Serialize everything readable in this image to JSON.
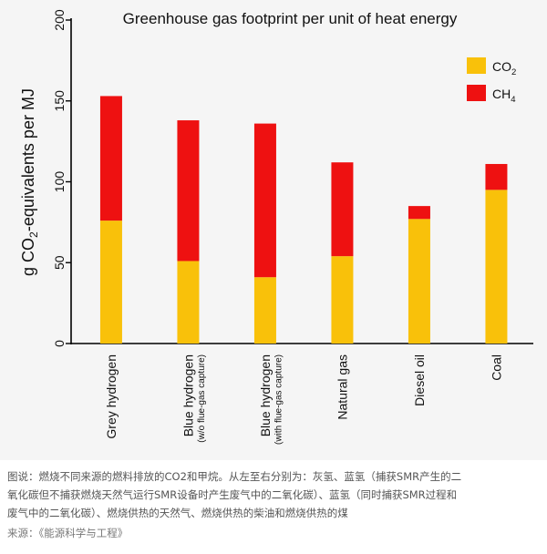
{
  "chart_data": {
    "type": "bar",
    "stacked": true,
    "title": "Greenhouse gas footprint per unit of heat energy",
    "ylabel_prefix": "g CO",
    "ylabel_sub": "2",
    "ylabel_suffix": "-equivalents per MJ",
    "ylim": [
      0,
      200
    ],
    "yticks": [
      0,
      50,
      100,
      150,
      200
    ],
    "grid": false,
    "legend_position": "top-right",
    "categories": [
      {
        "line1": "Grey hydrogen",
        "line2": ""
      },
      {
        "line1": "Blue hydrogen",
        "line2": "(w/o flue-gas capture)"
      },
      {
        "line1": "Blue hydrogen",
        "line2": "(with flue-gas capture)"
      },
      {
        "line1": "Natural gas",
        "line2": ""
      },
      {
        "line1": "Diesel oil",
        "line2": ""
      },
      {
        "line1": "Coal",
        "line2": ""
      }
    ],
    "series": [
      {
        "name_main": "CO",
        "name_sub": "2",
        "color": "#F9C10A",
        "values": [
          76,
          51,
          41,
          54,
          77,
          95
        ]
      },
      {
        "name_main": "CH",
        "name_sub": "4",
        "color": "#EE1111",
        "values": [
          77,
          87,
          95,
          58,
          8,
          16
        ]
      }
    ]
  },
  "caption": {
    "line1": "图说：燃烧不同来源的燃料排放的CO2和甲烷。从左至右分别为：灰氢、蓝氢（捕获SMR产生的二",
    "line2": "氧化碳但不捕获燃烧天然气运行SMR设备时产生废气中的二氧化碳）、蓝氢（同时捕获SMR过程和",
    "line3": "废气中的二氧化碳）、燃烧供热的天然气、燃烧供热的柴油和燃烧供热的煤",
    "source": "来源：《能源科学与工程》"
  }
}
